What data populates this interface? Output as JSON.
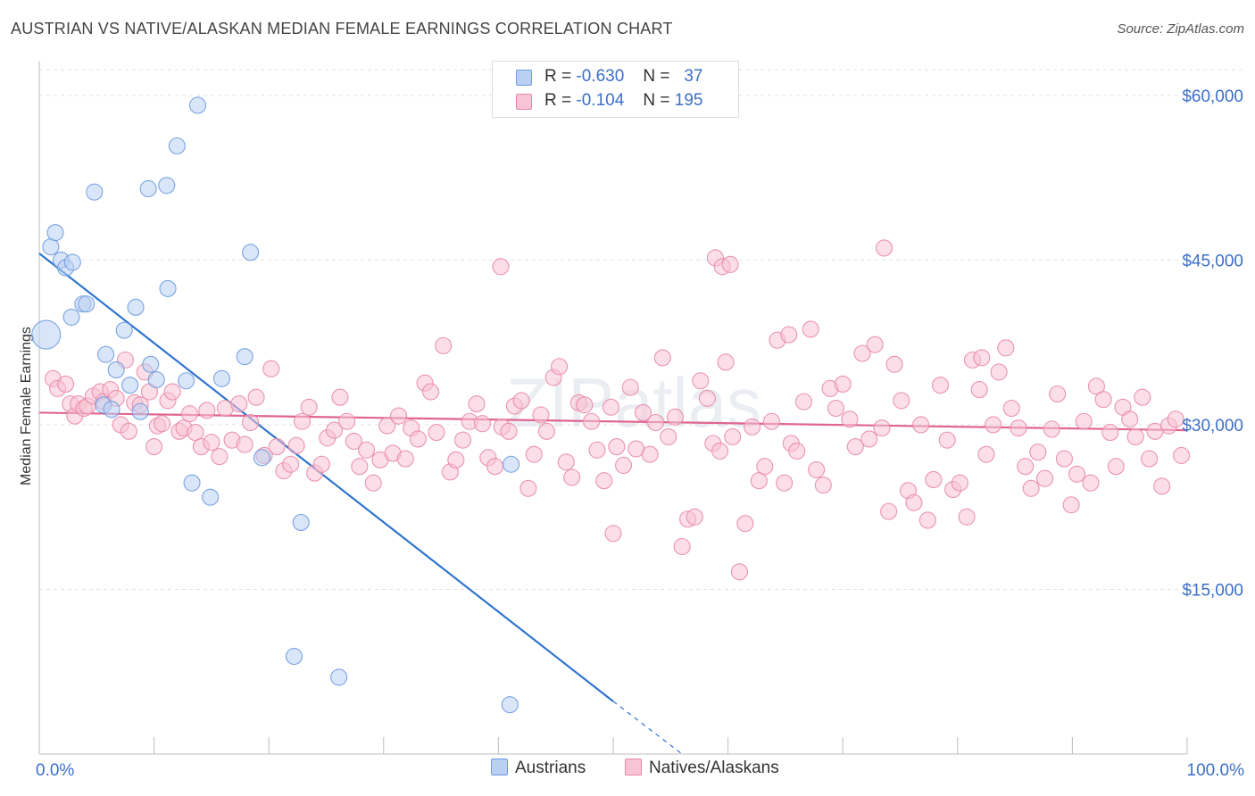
{
  "title": "AUSTRIAN VS NATIVE/ALASKAN MEDIAN FEMALE EARNINGS CORRELATION CHART",
  "source": "Source: ZipAtlas.com",
  "watermark": "ZIPatlas",
  "legend_top": [
    {
      "r_label": "R =",
      "r_value": "-0.630",
      "n_label": "N =",
      "n_value": "37",
      "color": "#6f9be0",
      "fill": "#b9d0f3"
    },
    {
      "r_label": "R =",
      "r_value": "-0.104",
      "n_label": "N =",
      "n_value": "195",
      "color": "#e989a8",
      "fill": "#f8c3d4"
    }
  ],
  "legend_bottom": [
    {
      "name": "Austrians",
      "color": "#6f9be0",
      "fill": "#b9d0f3"
    },
    {
      "name": "Natives/Alaskans",
      "color": "#e989a8",
      "fill": "#f8c3d4"
    }
  ],
  "chart_data": {
    "type": "scatter",
    "xlabel": "",
    "ylabel": "Median Female Earnings",
    "xlim": [
      0,
      100
    ],
    "ylim": [
      0,
      63000
    ],
    "x_tick_labels": [
      {
        "value": 0,
        "label": "0.0%"
      },
      {
        "value": 100,
        "label": "100.0%"
      }
    ],
    "y_ticks": [
      {
        "value": 15000,
        "label": "$15,000"
      },
      {
        "value": 30000,
        "label": "$30,000"
      },
      {
        "value": 45000,
        "label": "$45,000"
      },
      {
        "value": 60000,
        "label": "$60,000"
      }
    ],
    "grid": true,
    "series": [
      {
        "name": "Austrians",
        "color": "#6f9be0",
        "fill": "#b9d0f3",
        "trend": {
          "x0": 0,
          "y0": 45600,
          "x1": 50,
          "y1": 4800,
          "dash_to_x": 56,
          "dash_to_y": 0
        },
        "points": [
          [
            1.0,
            46200
          ],
          [
            1.4,
            47500
          ],
          [
            1.9,
            45000
          ],
          [
            2.3,
            44300
          ],
          [
            2.9,
            44800
          ],
          [
            2.8,
            39800
          ],
          [
            3.8,
            41000
          ],
          [
            4.1,
            41000
          ],
          [
            4.8,
            51200
          ],
          [
            5.8,
            36400
          ],
          [
            5.6,
            31800
          ],
          [
            6.3,
            31400
          ],
          [
            6.7,
            35000
          ],
          [
            7.4,
            38600
          ],
          [
            7.9,
            33600
          ],
          [
            8.4,
            40700
          ],
          [
            8.8,
            31200
          ],
          [
            9.5,
            51500
          ],
          [
            9.7,
            35500
          ],
          [
            10.2,
            34100
          ],
          [
            11.1,
            51800
          ],
          [
            11.2,
            42400
          ],
          [
            12.0,
            55400
          ],
          [
            12.8,
            34000
          ],
          [
            13.3,
            24700
          ],
          [
            13.8,
            59100
          ],
          [
            14.9,
            23400
          ],
          [
            15.9,
            34200
          ],
          [
            17.9,
            36200
          ],
          [
            18.4,
            45700
          ],
          [
            19.4,
            27000
          ],
          [
            22.2,
            8900
          ],
          [
            22.8,
            21100
          ],
          [
            26.1,
            7000
          ],
          [
            41.1,
            26400
          ],
          [
            41.0,
            4500
          ],
          [
            0.6,
            38200
          ]
        ]
      },
      {
        "name": "Natives/Alaskans",
        "color": "#e989a8",
        "fill": "#f8c3d4",
        "trend": {
          "x0": 0,
          "y0": 31100,
          "x1": 100,
          "y1": 29500
        },
        "points": [
          [
            1.2,
            34200
          ],
          [
            1.6,
            33300
          ],
          [
            2.3,
            33700
          ],
          [
            2.7,
            31900
          ],
          [
            3.1,
            30800
          ],
          [
            3.4,
            31900
          ],
          [
            3.9,
            31500
          ],
          [
            4.2,
            31700
          ],
          [
            4.7,
            32600
          ],
          [
            5.3,
            33000
          ],
          [
            5.6,
            32100
          ],
          [
            6.2,
            33200
          ],
          [
            6.7,
            32400
          ],
          [
            7.1,
            30000
          ],
          [
            7.5,
            35900
          ],
          [
            7.8,
            29400
          ],
          [
            8.3,
            32000
          ],
          [
            8.8,
            31800
          ],
          [
            9.2,
            34800
          ],
          [
            9.6,
            33000
          ],
          [
            10.0,
            28000
          ],
          [
            10.3,
            29900
          ],
          [
            10.7,
            30100
          ],
          [
            11.2,
            32200
          ],
          [
            11.6,
            33000
          ],
          [
            12.2,
            29400
          ],
          [
            12.6,
            29700
          ],
          [
            13.1,
            31000
          ],
          [
            13.6,
            29300
          ],
          [
            14.1,
            28000
          ],
          [
            14.6,
            31300
          ],
          [
            15.0,
            28400
          ],
          [
            15.7,
            27100
          ],
          [
            16.2,
            31500
          ],
          [
            16.8,
            28600
          ],
          [
            17.4,
            31900
          ],
          [
            17.9,
            28200
          ],
          [
            18.4,
            30200
          ],
          [
            18.9,
            32500
          ],
          [
            19.6,
            27200
          ],
          [
            20.2,
            35100
          ],
          [
            20.7,
            28000
          ],
          [
            21.3,
            25800
          ],
          [
            21.9,
            26400
          ],
          [
            22.4,
            28100
          ],
          [
            22.9,
            30300
          ],
          [
            23.5,
            31600
          ],
          [
            24.0,
            25600
          ],
          [
            24.6,
            26400
          ],
          [
            25.1,
            28800
          ],
          [
            25.7,
            29500
          ],
          [
            26.2,
            32500
          ],
          [
            26.8,
            30300
          ],
          [
            27.4,
            28500
          ],
          [
            27.9,
            26200
          ],
          [
            28.5,
            27700
          ],
          [
            29.1,
            24700
          ],
          [
            29.7,
            26800
          ],
          [
            30.3,
            29900
          ],
          [
            30.8,
            27400
          ],
          [
            31.3,
            30800
          ],
          [
            31.9,
            26900
          ],
          [
            32.4,
            29700
          ],
          [
            33.0,
            28700
          ],
          [
            33.6,
            33800
          ],
          [
            34.1,
            33000
          ],
          [
            34.6,
            29300
          ],
          [
            35.2,
            37200
          ],
          [
            35.8,
            25700
          ],
          [
            36.3,
            26800
          ],
          [
            36.9,
            28600
          ],
          [
            37.5,
            30300
          ],
          [
            38.1,
            31900
          ],
          [
            38.6,
            30100
          ],
          [
            39.1,
            27000
          ],
          [
            39.7,
            26200
          ],
          [
            40.3,
            29800
          ],
          [
            40.9,
            29400
          ],
          [
            41.4,
            31700
          ],
          [
            42.0,
            32200
          ],
          [
            42.6,
            24200
          ],
          [
            43.1,
            27300
          ],
          [
            43.7,
            30900
          ],
          [
            44.2,
            29400
          ],
          [
            44.8,
            34300
          ],
          [
            45.3,
            35300
          ],
          [
            45.9,
            26600
          ],
          [
            46.4,
            25200
          ],
          [
            47.0,
            32000
          ],
          [
            47.5,
            31800
          ],
          [
            48.1,
            30300
          ],
          [
            48.6,
            27700
          ],
          [
            49.2,
            24900
          ],
          [
            49.8,
            31600
          ],
          [
            50.3,
            28000
          ],
          [
            50.9,
            26300
          ],
          [
            51.5,
            33400
          ],
          [
            52.0,
            27800
          ],
          [
            52.6,
            31100
          ],
          [
            53.2,
            27300
          ],
          [
            53.7,
            30200
          ],
          [
            54.3,
            36100
          ],
          [
            54.8,
            28900
          ],
          [
            55.4,
            30700
          ],
          [
            56.0,
            18900
          ],
          [
            56.5,
            21400
          ],
          [
            57.1,
            21600
          ],
          [
            57.6,
            34000
          ],
          [
            58.2,
            32400
          ],
          [
            58.7,
            28300
          ],
          [
            59.3,
            27600
          ],
          [
            59.8,
            35700
          ],
          [
            60.4,
            28900
          ],
          [
            61.0,
            16600
          ],
          [
            61.5,
            21000
          ],
          [
            62.1,
            29800
          ],
          [
            62.7,
            24900
          ],
          [
            63.2,
            26200
          ],
          [
            63.8,
            30300
          ],
          [
            64.3,
            37700
          ],
          [
            64.9,
            24700
          ],
          [
            65.5,
            28300
          ],
          [
            66.0,
            27600
          ],
          [
            66.6,
            32100
          ],
          [
            67.2,
            38700
          ],
          [
            67.7,
            25900
          ],
          [
            68.3,
            24500
          ],
          [
            68.9,
            33300
          ],
          [
            69.4,
            31500
          ],
          [
            70.0,
            33700
          ],
          [
            70.6,
            30500
          ],
          [
            71.1,
            28000
          ],
          [
            71.7,
            36500
          ],
          [
            72.3,
            28700
          ],
          [
            72.8,
            37300
          ],
          [
            73.4,
            29700
          ],
          [
            74.0,
            22100
          ],
          [
            74.5,
            35500
          ],
          [
            75.1,
            32200
          ],
          [
            75.7,
            24000
          ],
          [
            76.2,
            22900
          ],
          [
            76.8,
            30000
          ],
          [
            77.4,
            21300
          ],
          [
            77.9,
            25000
          ],
          [
            78.5,
            33600
          ],
          [
            79.1,
            28600
          ],
          [
            79.6,
            24100
          ],
          [
            80.2,
            24700
          ],
          [
            80.8,
            21600
          ],
          [
            81.3,
            35900
          ],
          [
            81.9,
            33200
          ],
          [
            82.5,
            27300
          ],
          [
            83.1,
            30000
          ],
          [
            83.6,
            34800
          ],
          [
            84.2,
            37000
          ],
          [
            84.7,
            31500
          ],
          [
            85.3,
            29700
          ],
          [
            85.9,
            26200
          ],
          [
            86.4,
            24200
          ],
          [
            87.0,
            27500
          ],
          [
            87.6,
            25100
          ],
          [
            88.2,
            29600
          ],
          [
            88.7,
            32800
          ],
          [
            89.3,
            26900
          ],
          [
            89.9,
            22700
          ],
          [
            90.4,
            25500
          ],
          [
            91.0,
            30300
          ],
          [
            91.6,
            24700
          ],
          [
            92.1,
            33500
          ],
          [
            92.7,
            32300
          ],
          [
            93.3,
            29300
          ],
          [
            93.8,
            26200
          ],
          [
            94.4,
            31600
          ],
          [
            95.0,
            30500
          ],
          [
            95.5,
            28900
          ],
          [
            96.1,
            32500
          ],
          [
            96.7,
            26900
          ],
          [
            97.2,
            29400
          ],
          [
            97.8,
            24400
          ],
          [
            98.4,
            29900
          ],
          [
            99.0,
            30500
          ],
          [
            99.5,
            27200
          ],
          [
            58.9,
            45200
          ],
          [
            59.5,
            44400
          ],
          [
            60.2,
            44600
          ],
          [
            73.6,
            46100
          ],
          [
            40.2,
            44400
          ],
          [
            65.3,
            38200
          ],
          [
            82.1,
            36100
          ],
          [
            50.0,
            20100
          ]
        ]
      }
    ]
  }
}
